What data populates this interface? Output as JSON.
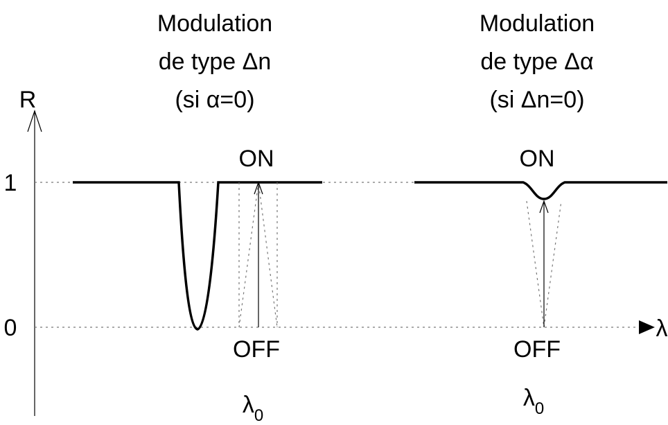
{
  "axis": {
    "y_label": "R",
    "x_label": "λ",
    "ticks": [
      "1",
      "0"
    ]
  },
  "panels": [
    {
      "title": [
        "Modulation",
        "de type Δn",
        "(si α=0)"
      ],
      "on": "ON",
      "off": "OFF",
      "wavelength": {
        "symbol": "λ",
        "subscript": "0"
      }
    },
    {
      "title": [
        "Modulation",
        "de type Δα",
        "(si Δn=0)"
      ],
      "on": "ON",
      "off": "OFF",
      "wavelength": {
        "symbol": "λ",
        "subscript": "0"
      }
    }
  ]
}
